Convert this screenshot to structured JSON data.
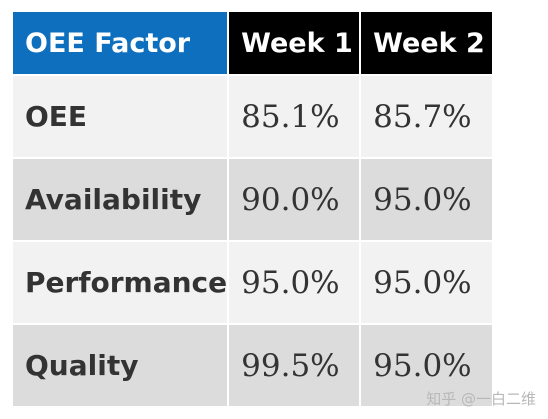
{
  "table": {
    "headers": [
      "OEE Factor",
      "Week 1",
      "Week 2"
    ],
    "rows": [
      {
        "factor": "OEE",
        "week1": "85.1%",
        "week2": "85.7%"
      },
      {
        "factor": "Availability",
        "week1": "90.0%",
        "week2": "95.0%"
      },
      {
        "factor": "Performance",
        "week1": "95.0%",
        "week2": "95.0%"
      },
      {
        "factor": "Quality",
        "week1": "99.5%",
        "week2": "95.0%"
      }
    ]
  },
  "watermark": "知乎 @一白二维",
  "colors": {
    "factor_header_bg": "#0d6fbd",
    "week_header_bg": "#000000",
    "row_light_bg": "#f2f2f2",
    "row_dark_bg": "#dcdcdc",
    "text": "#333333"
  }
}
